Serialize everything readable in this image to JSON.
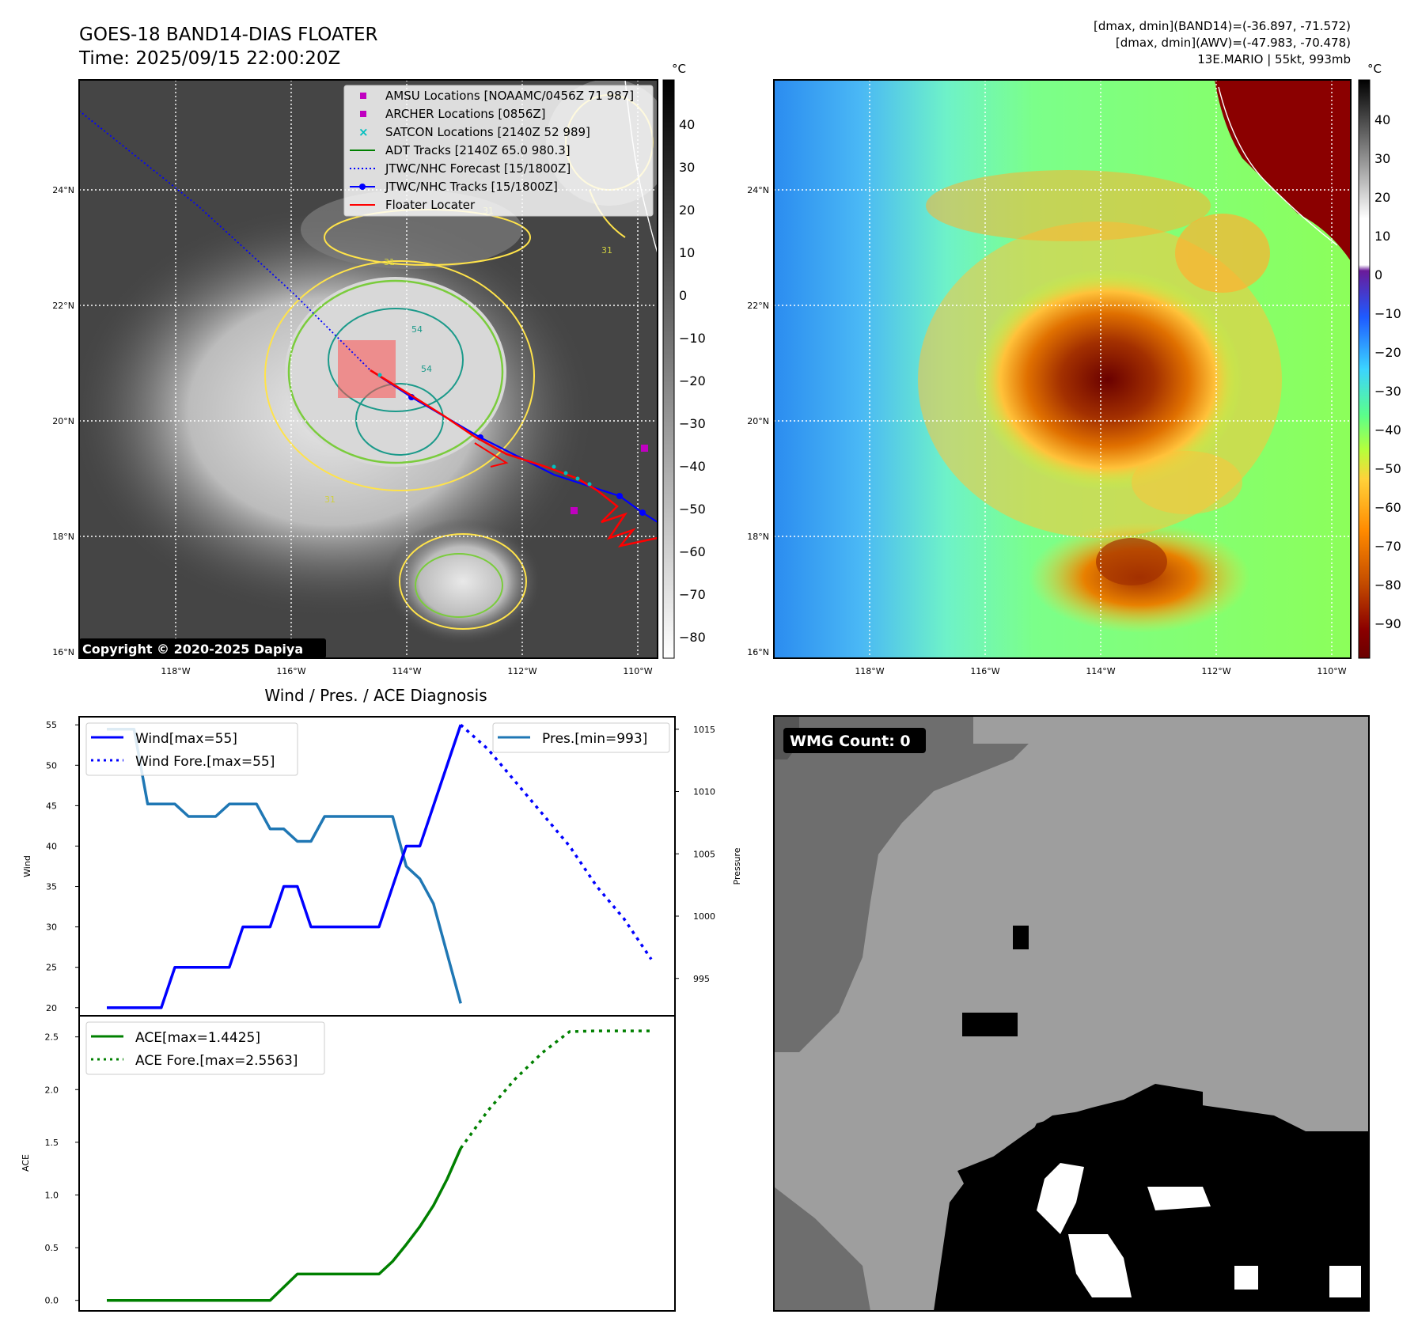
{
  "header": {
    "title_line1": "GOES-18 BAND14-DIAS FLOATER",
    "title_line2": "Time: 2025/09/15 22:00:20Z",
    "info_line1": "[dmax, dmin](BAND14)=(-36.897, -71.572)",
    "info_line2": "[dmax, dmin](AWV)=(-47.983, -70.478)",
    "info_line3": "13E.MARIO | 55kt, 993mb"
  },
  "map": {
    "lat_labels": [
      "24°N",
      "22°N",
      "20°N",
      "18°N",
      "16°N"
    ],
    "lon_labels": [
      "118°W",
      "116°W",
      "114°W",
      "112°W",
      "110°W"
    ],
    "copyright": "Copyright © 2020-2025 Dapiya",
    "contour_labels": [
      "31",
      "31",
      "31",
      "54",
      "54",
      "31"
    ],
    "legend": [
      {
        "label": "AMSU Locations [NOAAMC/0456Z 71 987]",
        "color": "#c000c0",
        "marker": "square"
      },
      {
        "label": "ARCHER Locations [0856Z]",
        "color": "#c000c0",
        "marker": "square"
      },
      {
        "label": "SATCON Locations [2140Z 52 989]",
        "color": "#00bfbf",
        "marker": "x"
      },
      {
        "label": "ADT Tracks [2140Z 65.0 980.3]",
        "color": "#008000",
        "marker": "line"
      },
      {
        "label": "JTWC/NHC Forecast [15/1800Z]",
        "color": "#0000ff",
        "marker": "dotted"
      },
      {
        "label": "JTWC/NHC Tracks [15/1800Z]",
        "color": "#0000ff",
        "marker": "line-dot"
      },
      {
        "label": "Floater Locater",
        "color": "#ff0000",
        "marker": "line"
      }
    ],
    "cbar_left": {
      "unit": "°C",
      "ticks": [
        "40",
        "30",
        "20",
        "10",
        "0",
        "−10",
        "−20",
        "−30",
        "−40",
        "−50",
        "−60",
        "−70",
        "−80"
      ]
    },
    "cbar_right": {
      "unit": "°C",
      "ticks": [
        "40",
        "30",
        "20",
        "10",
        "0",
        "−10",
        "−20",
        "−30",
        "−40",
        "−50",
        "−60",
        "−70",
        "−80",
        "−90"
      ]
    }
  },
  "diagnosis": {
    "title": "Wind / Pres. / ACE Diagnosis",
    "ylabel_wind": "Wind",
    "ylabel_pres": "Pressure",
    "ylabel_ace": "ACE",
    "legend_wind": "Wind[max=55]",
    "legend_wind_fore": "Wind Fore.[max=55]",
    "legend_pres": "Pres.[min=993]",
    "legend_ace": "ACE[max=1.4425]",
    "legend_ace_fore": "ACE Fore.[max=2.5563]",
    "wind_ticks": [
      "55",
      "50",
      "45",
      "40",
      "35",
      "30",
      "25",
      "20"
    ],
    "pres_ticks": [
      "1015",
      "1010",
      "1005",
      "1000",
      "995"
    ],
    "ace_ticks": [
      "2.5",
      "2.0",
      "1.5",
      "1.0",
      "0.5",
      "0.0"
    ]
  },
  "wmg": {
    "label": "WMG Count: 0"
  },
  "chart_data": [
    {
      "type": "line",
      "title": "Wind / Pres. / ACE Diagnosis",
      "ylabel": "Wind",
      "ylim": [
        19,
        56
      ],
      "series": [
        {
          "name": "Wind[max=55]",
          "color": "#0000ff",
          "style": "solid",
          "x": [
            0,
            1,
            2,
            3,
            4,
            5,
            6,
            7,
            8,
            9,
            10,
            11,
            12,
            13,
            14,
            15,
            16,
            17,
            18,
            19,
            20,
            21,
            22,
            23,
            24,
            25,
            26
          ],
          "values": [
            20,
            20,
            20,
            20,
            20,
            25,
            25,
            25,
            25,
            25,
            30,
            30,
            30,
            35,
            35,
            30,
            30,
            30,
            30,
            30,
            30,
            35,
            40,
            40,
            45,
            50,
            55
          ]
        },
        {
          "name": "Wind Fore.[max=55]",
          "color": "#0000ff",
          "style": "dotted",
          "x": [
            26,
            28,
            30,
            32,
            34,
            36,
            38,
            40
          ],
          "values": [
            55,
            52,
            48,
            44,
            40,
            35,
            31,
            26
          ]
        }
      ]
    },
    {
      "type": "line",
      "ylabel": "Pressure",
      "ylim": [
        992.0,
        1016.0
      ],
      "series": [
        {
          "name": "Pres.[min=993]",
          "color": "#1f77b4",
          "style": "solid",
          "x": [
            0,
            1,
            2,
            3,
            4,
            5,
            6,
            7,
            8,
            9,
            10,
            11,
            12,
            13,
            14,
            15,
            16,
            17,
            18,
            19,
            20,
            21,
            22,
            23,
            24,
            25,
            26
          ],
          "values": [
            1015,
            1015,
            1015,
            1009,
            1009,
            1009,
            1008,
            1008,
            1008,
            1009,
            1009,
            1009,
            1007,
            1007,
            1006,
            1006,
            1008,
            1008,
            1008,
            1008,
            1008,
            1008,
            1004,
            1003,
            1001,
            997,
            993
          ]
        }
      ]
    },
    {
      "type": "line",
      "ylabel": "ACE",
      "ylim": [
        -0.1,
        2.7
      ],
      "series": [
        {
          "name": "ACE[max=1.4425]",
          "color": "#008000",
          "style": "solid",
          "x": [
            0,
            1,
            2,
            3,
            4,
            5,
            6,
            7,
            8,
            9,
            10,
            11,
            12,
            13,
            14,
            15,
            16,
            17,
            18,
            19,
            20,
            21,
            22,
            23,
            24,
            25,
            26
          ],
          "values": [
            0,
            0,
            0,
            0,
            0,
            0,
            0,
            0,
            0,
            0,
            0,
            0,
            0,
            0.125,
            0.25,
            0.25,
            0.25,
            0.25,
            0.25,
            0.25,
            0.25,
            0.37,
            0.53,
            0.7,
            0.9,
            1.15,
            1.4425
          ]
        },
        {
          "name": "ACE Fore.[max=2.5563]",
          "color": "#008000",
          "style": "dotted",
          "x": [
            26,
            28,
            30,
            32,
            34,
            36,
            38,
            40
          ],
          "values": [
            1.4425,
            1.8,
            2.1,
            2.35,
            2.55,
            2.5563,
            2.5563,
            2.5563
          ]
        }
      ]
    }
  ]
}
